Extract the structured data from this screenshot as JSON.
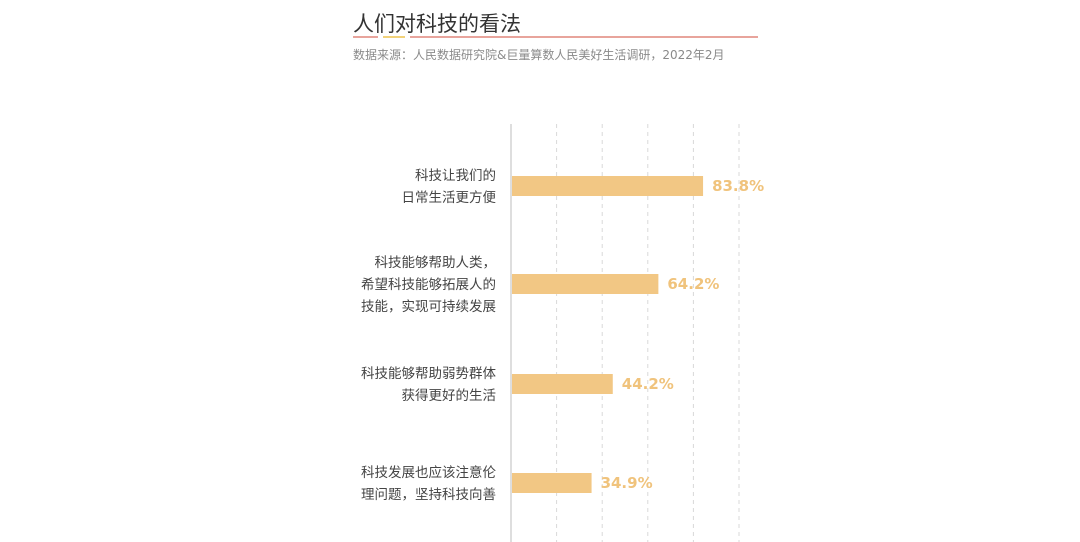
{
  "title": "人们对科技的看法",
  "source": "数据来源：人民数据研究院&巨量算数人民美好生活调研，2022年2月",
  "colors": {
    "bar": "#f2c784",
    "value_text": "#f0c37c",
    "axis": "#bdbdbd",
    "grid": "#d9d9d9",
    "rule_red": "#e8a49c",
    "rule_yellow": "#f2d27a"
  },
  "chart_data": {
    "type": "bar",
    "orientation": "horizontal",
    "categories": [
      [
        "科技让我们的",
        "日常生活更方便"
      ],
      [
        "科技能够帮助人类，",
        "希望科技能够拓展人的",
        "技能，实现可持续发展"
      ],
      [
        "科技能够帮助弱势群体",
        "获得更好的生活"
      ],
      [
        "科技发展也应该注意伦",
        "理问题，坚持科技向善"
      ]
    ],
    "values": [
      83.8,
      64.2,
      44.2,
      34.9
    ],
    "value_labels": [
      "83.8%",
      "64.2%",
      "44.2%",
      "34.9%"
    ],
    "xlim": [
      0,
      100
    ],
    "grid": true
  }
}
